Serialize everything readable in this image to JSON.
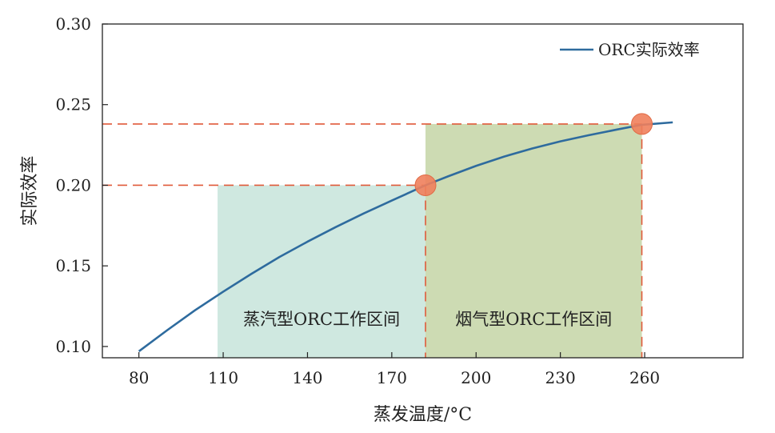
{
  "chart_data": {
    "type": "line",
    "xlabel": "蒸发温度/°C",
    "ylabel": "实际效率",
    "xlim": [
      67,
      295
    ],
    "ylim": [
      0.093,
      0.3
    ],
    "xticks": [
      80,
      110,
      140,
      170,
      200,
      230,
      260
    ],
    "xtick_labels": [
      "80",
      "110",
      "140",
      "170",
      "200",
      "230",
      "260"
    ],
    "yticks": [
      0.1,
      0.15,
      0.2,
      0.25,
      0.3
    ],
    "ytick_labels": [
      "0.10",
      "0.15",
      "0.20",
      "0.25",
      "0.30"
    ],
    "grid": false,
    "legend_position": "top-right",
    "series": [
      {
        "name": "ORC实际效率",
        "color": "#2e6b9e",
        "x": [
          80,
          90,
          100,
          110,
          120,
          130,
          140,
          150,
          160,
          170,
          182,
          190,
          200,
          210,
          220,
          230,
          240,
          250,
          259,
          270
        ],
        "y": [
          0.097,
          0.11,
          0.1225,
          0.134,
          0.145,
          0.1555,
          0.165,
          0.174,
          0.1825,
          0.1905,
          0.2,
          0.2055,
          0.212,
          0.2178,
          0.2228,
          0.2272,
          0.231,
          0.2345,
          0.2375,
          0.239
        ]
      }
    ],
    "regions": [
      {
        "label": "蒸汽型ORC工作区间",
        "x_range": [
          108,
          182
        ],
        "y_range": [
          0.093,
          0.2
        ],
        "color": "#cfe8e0"
      },
      {
        "label": "烟气型ORC工作区间",
        "x_range": [
          182,
          259
        ],
        "y_range": [
          0.093,
          0.238
        ],
        "color": "#cddbb3"
      }
    ],
    "markers": [
      {
        "x": 182,
        "y": 0.2,
        "color": "#f07f5c"
      },
      {
        "x": 259,
        "y": 0.238,
        "color": "#f07f5c"
      }
    ],
    "reference_lines": {
      "color": "#e05a3a",
      "style": "dashed",
      "horizontal_y": [
        0.2,
        0.238
      ],
      "vertical_x": [
        182,
        259
      ]
    }
  }
}
